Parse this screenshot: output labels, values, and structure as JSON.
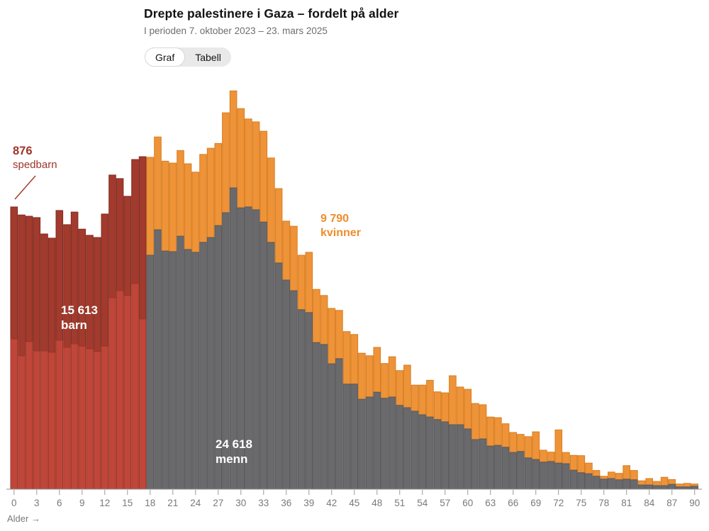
{
  "header": {
    "title": "Drepte palestinere i Gaza – fordelt på alder",
    "subtitle": "I perioden 7. oktober 2023 – 23. mars 2025"
  },
  "view_toggle": {
    "graf_label": "Graf",
    "tabell_label": "Tabell",
    "active": "Graf"
  },
  "annotations": {
    "spedbarn": {
      "value": "876",
      "label": "spedbarn",
      "color": "#9f3428"
    },
    "barn": {
      "value": "15 613",
      "label": "barn",
      "color": "#ffffff"
    },
    "menn": {
      "value": "24 618",
      "label": "menn",
      "color": "#ffffff"
    },
    "kvinner": {
      "value": "9 790",
      "label": "kvinner",
      "color": "#ee8d2d"
    }
  },
  "axis": {
    "label": "Alder →",
    "min": 0,
    "max": 90,
    "tick_step": 3,
    "tick_color": "#999999",
    "label_color": "#7a7a7a"
  },
  "colors": {
    "barn_dark": "#a23a2d",
    "barn_dark_stroke": "#822c21",
    "barn_light": "#c0463a",
    "barn_light_stroke": "#9c3527",
    "menn": "#6a6a6c",
    "menn_stroke": "#59595b",
    "kvinner": "#ef9338",
    "kvinner_stroke": "#d67e22",
    "leader_line": "#9f3428",
    "background": "#ffffff"
  },
  "chart_data": {
    "type": "bar",
    "stacked": true,
    "title": "Drepte palestinere i Gaza – fordelt på alder",
    "x_axis": "Alder (0–90+)",
    "units": "estimated persons (no y-axis shown; totals from labels)",
    "totals": {
      "spedbarn": 876,
      "barn": 15613,
      "kvinner": 9790,
      "menn": 24618
    },
    "series": [
      {
        "name": "barn",
        "start_age": 0,
        "color": "#a23a2d",
        "values": [
          876,
          851,
          847,
          843,
          792,
          779,
          865,
          821,
          860,
          807,
          788,
          781,
          854,
          975,
          964,
          909,
          1023,
          1032
        ]
      },
      {
        "name": "barn_inner_lys_segment",
        "start_age": 0,
        "color": "#c0463a",
        "values": [
          466,
          414,
          458,
          429,
          429,
          425,
          462,
          440,
          451,
          444,
          436,
          427,
          444,
          594,
          616,
          601,
          638,
          528
        ]
      },
      {
        "name": "menn",
        "start_age": 18,
        "color": "#6a6a6c",
        "values": [
          726,
          805,
          739,
          737,
          785,
          744,
          735,
          766,
          781,
          818,
          858,
          935,
          873,
          876,
          867,
          829,
          766,
          702,
          649,
          616,
          557,
          548,
          455,
          449,
          389,
          405,
          326,
          326,
          279,
          286,
          301,
          282,
          286,
          260,
          253,
          242,
          231,
          224,
          216,
          209,
          200,
          200,
          187,
          154,
          156,
          134,
          136,
          130,
          114,
          117,
          97,
          92,
          84,
          86,
          81,
          79,
          59,
          51,
          48,
          40,
          31,
          33,
          29,
          31,
          29,
          13,
          13,
          11,
          11,
          15,
          7,
          7,
          9
        ]
      },
      {
        "name": "kvinner",
        "start_age": 18,
        "color": "#ef9338",
        "values": [
          304,
          288,
          279,
          275,
          266,
          266,
          249,
          273,
          277,
          255,
          310,
          301,
          308,
          273,
          273,
          282,
          262,
          231,
          183,
          200,
          169,
          187,
          165,
          152,
          172,
          150,
          163,
          154,
          143,
          128,
          139,
          108,
          125,
          108,
          132,
          81,
          92,
          114,
          86,
          90,
          152,
          117,
          123,
          112,
          106,
          90,
          86,
          73,
          62,
          53,
          66,
          86,
          37,
          29,
          103,
          35,
          46,
          53,
          33,
          18,
          9,
          20,
          20,
          42,
          29,
          13,
          20,
          13,
          26,
          15,
          9,
          11,
          7
        ]
      }
    ]
  }
}
